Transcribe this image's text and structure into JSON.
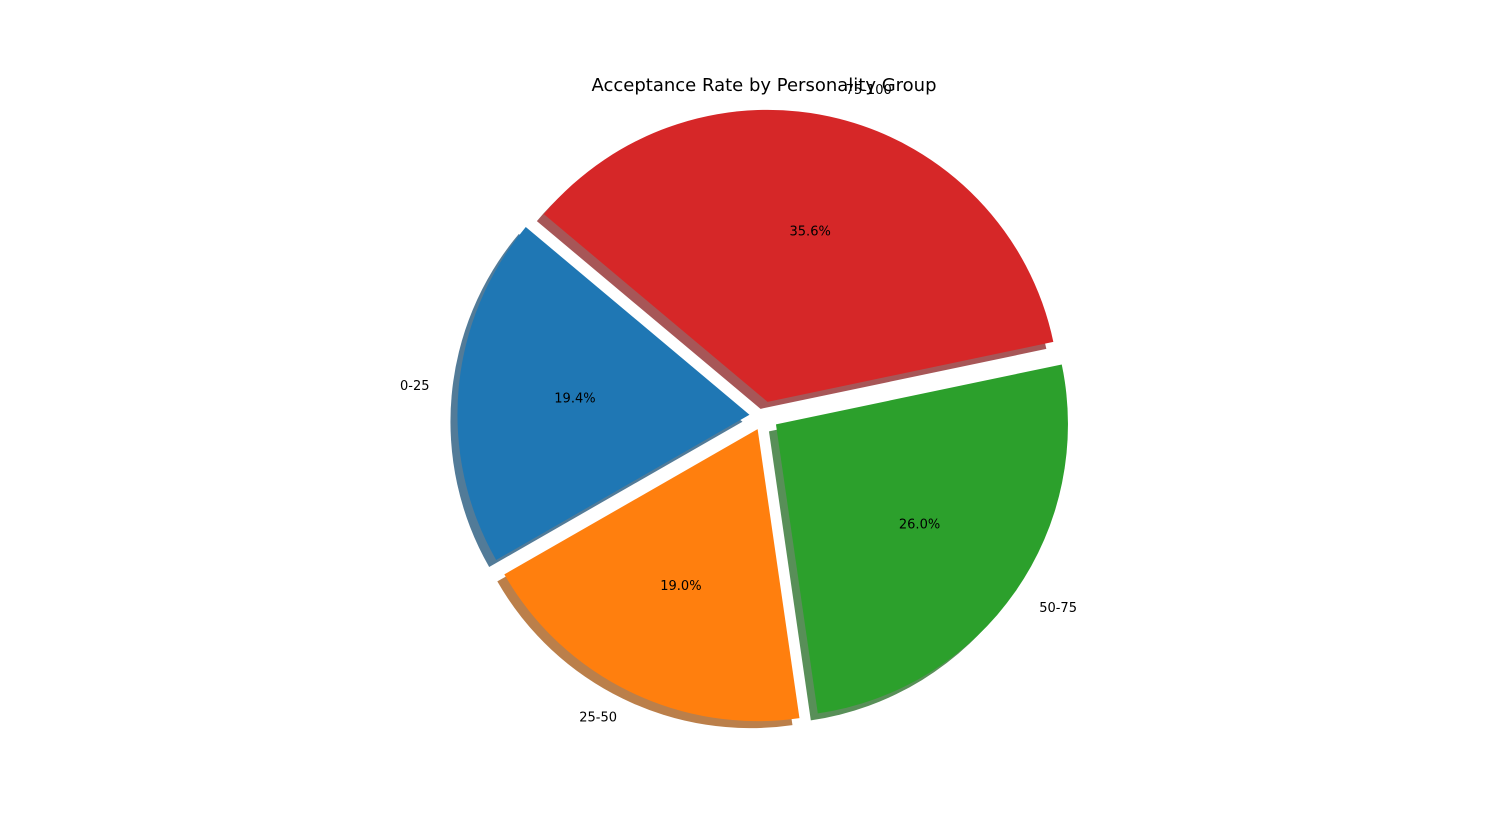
{
  "chart_data": {
    "type": "pie",
    "title": "Acceptance Rate by Personality Group",
    "labels": [
      "0-25",
      "25-50",
      "50-75",
      "75-100"
    ],
    "values": [
      19.4,
      19.0,
      26.0,
      35.6
    ],
    "percent_labels": [
      "19.4%",
      "19.0%",
      "26.0%",
      "35.6%"
    ],
    "colors": [
      "#1f77b4",
      "#ff7f0e",
      "#2ca02c",
      "#d62728"
    ],
    "exploded": true,
    "shadow": true,
    "legend": "none"
  }
}
